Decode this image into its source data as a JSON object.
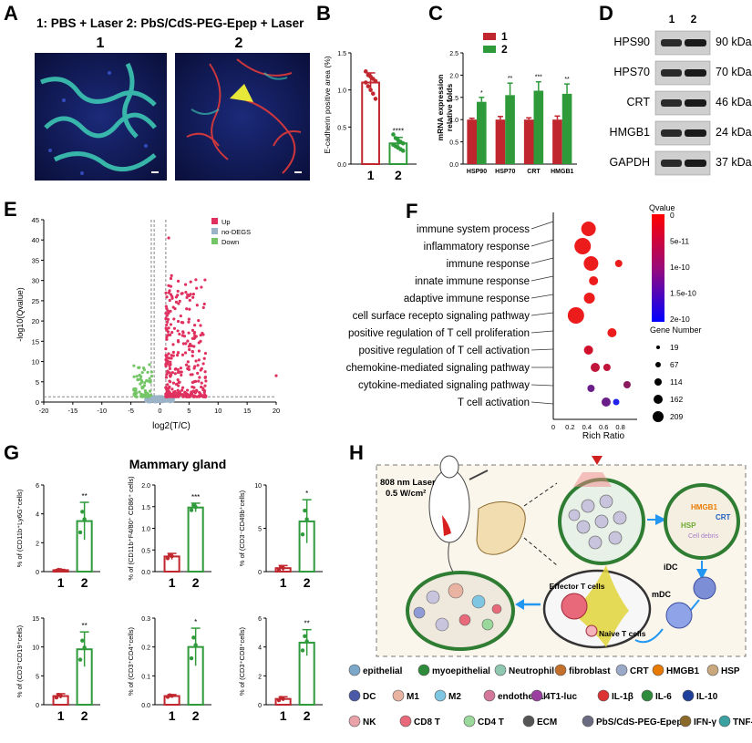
{
  "colors": {
    "red": "#c0262d",
    "green": "#2e9a3a",
    "up": "#e0305f",
    "nodeg": "#9bb3c7",
    "down": "#74c566",
    "blue": "#1a1aff"
  },
  "panels": {
    "A": {
      "letter": "A",
      "caption": "1: PBS + Laser 2: PbS/CdS-PEG-Epep + Laser",
      "labels": [
        "1",
        "2"
      ]
    },
    "B": {
      "letter": "B"
    },
    "C": {
      "letter": "C"
    },
    "D": {
      "letter": "D",
      "lanes": [
        "1",
        "2"
      ],
      "rows": [
        {
          "protein": "HPS90",
          "size": "90 kDa"
        },
        {
          "protein": "HPS70",
          "size": "70 kDa"
        },
        {
          "protein": "CRT",
          "size": "46 kDa"
        },
        {
          "protein": "HMGB1",
          "size": "24 kDa"
        },
        {
          "protein": "GAPDH",
          "size": "37 kDa"
        }
      ]
    },
    "E": {
      "letter": "E"
    },
    "F": {
      "letter": "F"
    },
    "G": {
      "letter": "G",
      "title": "Mammary gland"
    },
    "H": {
      "letter": "H",
      "laser_line1": "808 nm Laser",
      "laser_line2": "0.5 W/cm²",
      "tags": {
        "hmgb1": "HMGB1",
        "crt": "CRT",
        "hsp": "HSP",
        "debris": "Cell debris",
        "idc": "iDC",
        "mdc": "mDC",
        "effector": "Effector T cells",
        "naive": "Naive T cells"
      },
      "legend": [
        {
          "icon": "epithelial-icon",
          "label": "epithelial"
        },
        {
          "icon": "myoepithelial-icon",
          "label": "myoepithelial"
        },
        {
          "icon": "neutrophil-icon",
          "label": "Neutrophil"
        },
        {
          "icon": "fibroblast-icon",
          "label": "fibroblast"
        },
        {
          "icon": "crt-icon",
          "label": "CRT"
        },
        {
          "icon": "hmgb1-icon",
          "label": "HMGB1"
        },
        {
          "icon": "hsp-icon",
          "label": "HSP"
        },
        {
          "icon": "dc-icon",
          "label": "DC"
        },
        {
          "icon": "m1-icon",
          "label": "M1"
        },
        {
          "icon": "m2-icon",
          "label": "M2"
        },
        {
          "icon": "endothelial-icon",
          "label": "endothelial"
        },
        {
          "icon": "4t1-luc-icon",
          "label": "4T1-luc"
        },
        {
          "icon": "il1b-icon",
          "label": "IL-1β"
        },
        {
          "icon": "il6-icon",
          "label": "IL-6"
        },
        {
          "icon": "il10-icon",
          "label": "IL-10"
        },
        {
          "icon": "nk-icon",
          "label": "NK"
        },
        {
          "icon": "cd8t-icon",
          "label": "CD8 T"
        },
        {
          "icon": "cd4t-icon",
          "label": "CD4 T"
        },
        {
          "icon": "ecm-icon",
          "label": "ECM"
        },
        {
          "icon": "nanoparticle-icon",
          "label": "PbS/CdS-PEG-Epep"
        },
        {
          "icon": "ifng-icon",
          "label": "IFN-γ"
        },
        {
          "icon": "tnfa-icon",
          "label": "TNF-α"
        }
      ]
    }
  },
  "chart_data": [
    {
      "id": "B",
      "type": "bar",
      "categories": [
        "1",
        "2"
      ],
      "values": [
        1.1,
        0.28
      ],
      "errors": [
        0.13,
        0.08
      ],
      "ylabel": "E-cadherin positive area (%)",
      "ylim": [
        0,
        1.5
      ],
      "yticks": [
        "0.0",
        "0.5",
        "1.0",
        "1.5"
      ],
      "significance": [
        "",
        "****"
      ],
      "points": [
        [
          1.25,
          1.2,
          1.18,
          1.15,
          1.12,
          1.1,
          1.05,
          1.0,
          0.95,
          0.88
        ],
        [
          0.4,
          0.35,
          0.32,
          0.3,
          0.28,
          0.26,
          0.24,
          0.22,
          0.2,
          0.18
        ]
      ]
    },
    {
      "id": "C",
      "type": "bar",
      "categories": [
        "HSP90",
        "HSP70",
        "CRT",
        "HMGB1"
      ],
      "series": [
        {
          "name": "1",
          "values": [
            1.0,
            1.0,
            1.0,
            1.0
          ],
          "errors": [
            0.03,
            0.07,
            0.04,
            0.08
          ]
        },
        {
          "name": "2",
          "values": [
            1.4,
            1.55,
            1.65,
            1.58
          ],
          "errors": [
            0.1,
            0.27,
            0.2,
            0.22
          ]
        }
      ],
      "ylabel": "mRNA expression relative folds",
      "ylim": [
        0,
        2.5
      ],
      "yticks": [
        "0.0",
        "0.5",
        "1.0",
        "1.5",
        "2.0",
        "2.5"
      ],
      "significance": [
        "*",
        "**",
        "***",
        "**"
      ]
    },
    {
      "id": "E",
      "type": "scatter",
      "xlabel": "log2(T/C)",
      "ylabel": "-log10(Qvalue)",
      "xlim": [
        -20,
        20
      ],
      "ylim": [
        0,
        45
      ],
      "xticks": [
        -20,
        -15,
        -10,
        -5,
        0,
        5,
        10,
        15,
        20
      ],
      "yticks": [
        0,
        5,
        10,
        15,
        20,
        25,
        30,
        35,
        40,
        45
      ],
      "legend": [
        "Up",
        "no-DEGS",
        "Down"
      ]
    },
    {
      "id": "F",
      "type": "scatter",
      "xlabel": "Rich Ratio",
      "xticks": [
        "0",
        "0.2",
        "0.4",
        "0.6",
        "0.8"
      ],
      "xlim": [
        0,
        1.0
      ],
      "categories": [
        "immune system process",
        "inflammatory response",
        "immune response",
        "innate immune response",
        "adaptive immune response",
        "cell surface recepto signaling pathway",
        "positive regulation of T cell proliferation",
        "positive regulation of T cell activation",
        "chemokine-mediated signaling pathway",
        "cytokine-mediated signaling pathway",
        "T cell activation"
      ],
      "size_legend_title": "Gene Number",
      "size_legend": [
        "19",
        "67",
        "114",
        "162",
        "209"
      ],
      "color_legend_title": "Qvalue",
      "color_ticks": [
        "0",
        "5e-11",
        "1e-10",
        "1.5e-10",
        "2e-10"
      ]
    },
    {
      "id": "G",
      "type": "bar",
      "title": "Mammary gland",
      "subplots": [
        {
          "ylabel": "% of (CD11b⁺Ly6G⁺cells)",
          "ylim": [
            0,
            6
          ],
          "yticks": [
            "0",
            "2",
            "4",
            "6"
          ],
          "categories": [
            "1",
            "2"
          ],
          "values": [
            0.1,
            3.5
          ],
          "errors": [
            0.05,
            1.3
          ],
          "sig": "**"
        },
        {
          "ylabel": "% of (CD11b⁺F4/80⁺ CD86⁺ cells)",
          "ylim": [
            0,
            2.0
          ],
          "yticks": [
            "0.0",
            "0.5",
            "1.0",
            "1.5",
            "2.0"
          ],
          "categories": [
            "1",
            "2"
          ],
          "values": [
            0.35,
            1.48
          ],
          "errors": [
            0.07,
            0.1
          ],
          "sig": "***"
        },
        {
          "ylabel": "% of (CD3⁻CD49b⁺cells)",
          "ylim": [
            0,
            10
          ],
          "yticks": [
            "0",
            "5",
            "10"
          ],
          "categories": [
            "1",
            "2"
          ],
          "values": [
            0.4,
            5.8
          ],
          "errors": [
            0.3,
            2.5
          ],
          "sig": "*"
        },
        {
          "ylabel": "% of (CD3⁺CD19⁺cells)",
          "ylim": [
            0,
            15
          ],
          "yticks": [
            "0",
            "5",
            "10",
            "15"
          ],
          "categories": [
            "1",
            "2"
          ],
          "values": [
            1.5,
            9.6
          ],
          "errors": [
            0.4,
            3.0
          ],
          "sig": "**"
        },
        {
          "ylabel": "% of (CD3⁺CD4⁺cells)",
          "ylim": [
            0,
            0.3
          ],
          "yticks": [
            "0.0",
            "0.1",
            "0.2",
            "0.3"
          ],
          "categories": [
            "1",
            "2"
          ],
          "values": [
            0.03,
            0.2
          ],
          "errors": [
            0.005,
            0.065
          ],
          "sig": "*"
        },
        {
          "ylabel": "% of (CD3⁺CD8⁺cells)",
          "ylim": [
            0,
            6
          ],
          "yticks": [
            "0",
            "2",
            "4",
            "6"
          ],
          "categories": [
            "1",
            "2"
          ],
          "values": [
            0.4,
            4.3
          ],
          "errors": [
            0.15,
            0.9
          ],
          "sig": "**"
        }
      ]
    }
  ]
}
